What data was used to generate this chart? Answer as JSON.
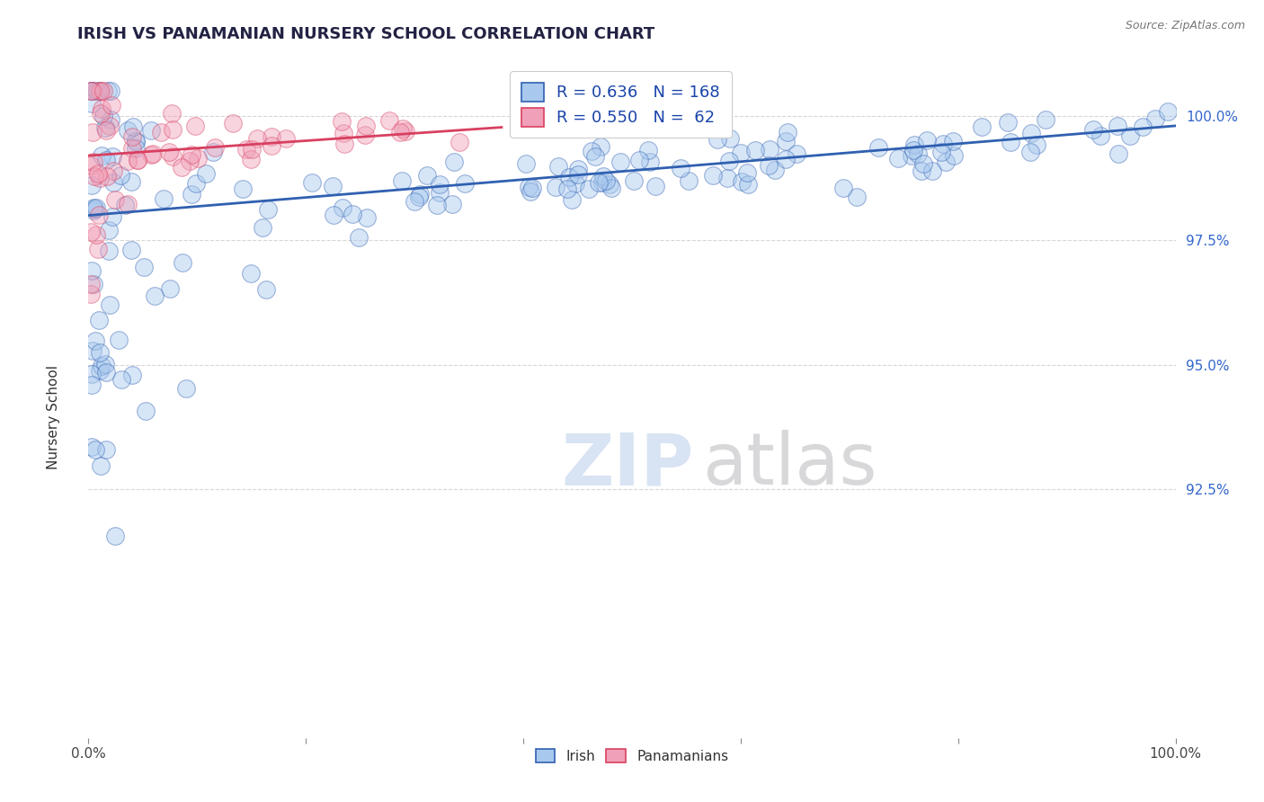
{
  "title": "IRISH VS PANAMANIAN NURSERY SCHOOL CORRELATION CHART",
  "source": "Source: ZipAtlas.com",
  "ylabel": "Nursery School",
  "ytick_values": [
    92.5,
    95.0,
    97.5,
    100.0
  ],
  "ymin": 87.5,
  "ymax": 101.2,
  "xmin": 0.0,
  "xmax": 100.0,
  "legend_irish": "Irish",
  "legend_panamanians": "Panamanians",
  "blue_color": "#a8c8ee",
  "pink_color": "#f0a0b8",
  "blue_line_color": "#3060b0",
  "pink_line_color": "#d84060",
  "background_color": "#ffffff",
  "grid_color": "#bbbbbb",
  "ytick_color": "#3366cc",
  "title_color": "#222244"
}
